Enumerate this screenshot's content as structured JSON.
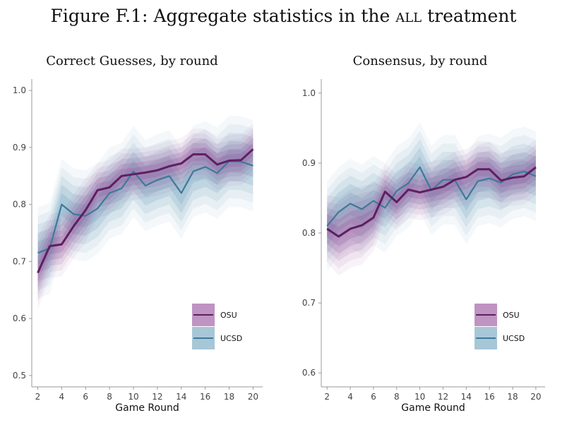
{
  "figure": {
    "title_prefix": "Figure F.1: Aggregate statistics in the ",
    "title_smallcaps": "all",
    "title_suffix": " treatment"
  },
  "colors": {
    "osu": "#5e1f60",
    "ucsd": "#3d7a9b",
    "osu_band": "#8a3a8f",
    "ucsd_band": "#4f8fb0"
  },
  "chart_data": [
    {
      "type": "line",
      "title": "Correct Guesses, by round",
      "xlabel": "Game Round",
      "ylabel": "",
      "xlim": [
        1.5,
        20.8
      ],
      "ylim": [
        0.48,
        1.02
      ],
      "xticks": [
        2,
        4,
        6,
        8,
        10,
        12,
        14,
        16,
        18,
        20
      ],
      "yticks": [
        0.5,
        0.6,
        0.7,
        0.8,
        0.9,
        1.0
      ],
      "ytick_labels": [
        "0.5",
        "0.6",
        "0.7",
        "0.8",
        "0.9",
        "1.0"
      ],
      "x": [
        2,
        3,
        4,
        5,
        6,
        7,
        8,
        9,
        10,
        11,
        12,
        13,
        14,
        15,
        16,
        17,
        18,
        19,
        20
      ],
      "series": [
        {
          "name": "OSU",
          "color": "#5e1f60",
          "values": [
            0.68,
            0.727,
            0.73,
            0.762,
            0.79,
            0.825,
            0.83,
            0.85,
            0.853,
            0.856,
            0.86,
            0.867,
            0.872,
            0.888,
            0.888,
            0.87,
            0.877,
            0.878,
            0.897
          ],
          "ci": [
            0.04,
            0.035,
            0.035,
            0.035,
            0.035,
            0.03,
            0.03,
            0.03,
            0.028,
            0.028,
            0.028,
            0.028,
            0.028,
            0.028,
            0.028,
            0.028,
            0.028,
            0.028,
            0.028
          ]
        },
        {
          "name": "UCSD",
          "color": "#3d7a9b",
          "values": [
            0.715,
            0.723,
            0.8,
            0.783,
            0.78,
            0.793,
            0.82,
            0.828,
            0.858,
            0.833,
            0.843,
            0.85,
            0.82,
            0.858,
            0.866,
            0.855,
            0.876,
            0.875,
            0.868
          ],
          "ci": [
            0.05,
            0.05,
            0.05,
            0.05,
            0.05,
            0.05,
            0.05,
            0.05,
            0.05,
            0.05,
            0.05,
            0.05,
            0.05,
            0.05,
            0.05,
            0.05,
            0.05,
            0.05,
            0.05
          ]
        }
      ],
      "legend": {
        "position": "bottom-right",
        "entries": [
          "OSU",
          "UCSD"
        ]
      }
    },
    {
      "type": "line",
      "title": "Consensus, by round",
      "xlabel": "Game Round",
      "ylabel": "",
      "xlim": [
        1.5,
        20.8
      ],
      "ylim": [
        0.58,
        1.02
      ],
      "xticks": [
        2,
        4,
        6,
        8,
        10,
        12,
        14,
        16,
        18,
        20
      ],
      "yticks": [
        0.6,
        0.7,
        0.8,
        0.9,
        1.0
      ],
      "ytick_labels": [
        "0.6",
        "0.7",
        "0.8",
        "0.9",
        "1.0"
      ],
      "x": [
        2,
        3,
        4,
        5,
        6,
        7,
        8,
        9,
        10,
        11,
        12,
        13,
        14,
        15,
        16,
        17,
        18,
        19,
        20
      ],
      "series": [
        {
          "name": "OSU",
          "color": "#5e1f60",
          "values": [
            0.806,
            0.795,
            0.806,
            0.811,
            0.822,
            0.859,
            0.844,
            0.862,
            0.858,
            0.862,
            0.866,
            0.876,
            0.88,
            0.891,
            0.891,
            0.875,
            0.879,
            0.881,
            0.894
          ],
          "ci": [
            0.03,
            0.035,
            0.035,
            0.035,
            0.03,
            0.025,
            0.025,
            0.025,
            0.025,
            0.025,
            0.025,
            0.025,
            0.025,
            0.025,
            0.025,
            0.025,
            0.025,
            0.025,
            0.025
          ]
        },
        {
          "name": "UCSD",
          "color": "#3d7a9b",
          "values": [
            0.81,
            0.83,
            0.842,
            0.834,
            0.846,
            0.836,
            0.86,
            0.871,
            0.894,
            0.861,
            0.876,
            0.876,
            0.848,
            0.874,
            0.878,
            0.872,
            0.884,
            0.888,
            0.881
          ],
          "ci": [
            0.04,
            0.04,
            0.04,
            0.04,
            0.04,
            0.04,
            0.04,
            0.04,
            0.04,
            0.04,
            0.04,
            0.04,
            0.04,
            0.04,
            0.04,
            0.04,
            0.04,
            0.04,
            0.04
          ]
        }
      ],
      "legend": {
        "position": "bottom-right",
        "entries": [
          "OSU",
          "UCSD"
        ]
      }
    }
  ]
}
